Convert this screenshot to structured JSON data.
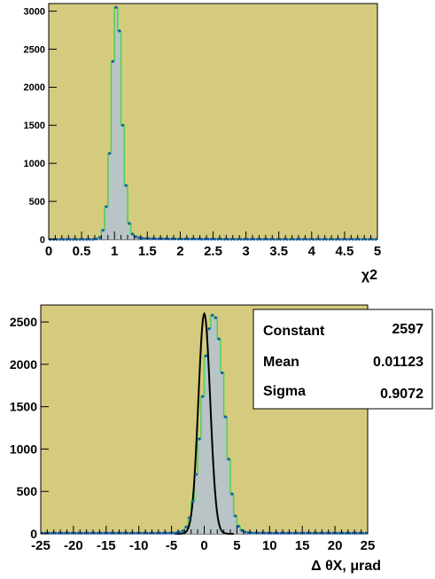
{
  "colors": {
    "frame_bg": "#d5cb7e",
    "hist_fill": "#b8c4c8",
    "hist_line": "#4fd14f",
    "fit_line": "#000000",
    "marker": "#1a5aa8",
    "stats_bg": "#ffffff"
  },
  "chart_data": [
    {
      "type": "histogram",
      "xlabel": "χ2",
      "xlim": [
        0,
        5
      ],
      "ylim": [
        0,
        3100
      ],
      "xticks": [
        "0",
        "0.5",
        "1",
        "1.5",
        "2",
        "2.5",
        "3",
        "3.5",
        "4",
        "4.5",
        "5"
      ],
      "yticks": [
        "0",
        "500",
        "1000",
        "1500",
        "2000",
        "2500",
        "3000"
      ],
      "bin_edges_start": 0.0,
      "bin_width": 0.05,
      "values": [
        0,
        0,
        0,
        0,
        0,
        0,
        0,
        0,
        0,
        0,
        0,
        0,
        0,
        0,
        5,
        25,
        120,
        430,
        1130,
        2340,
        3050,
        2740,
        1500,
        710,
        210,
        70,
        35,
        22,
        15,
        12,
        10,
        9,
        8,
        8,
        7,
        7,
        6,
        6,
        6,
        5,
        5,
        5,
        4,
        4,
        4,
        4,
        3,
        3,
        3,
        3,
        3,
        3,
        3,
        2,
        2,
        2,
        2,
        2,
        2,
        2,
        2,
        2,
        2,
        2,
        2,
        2,
        2,
        1,
        1,
        1,
        1,
        1,
        1,
        1,
        1,
        1,
        1,
        1,
        1,
        1,
        1,
        1,
        1,
        1,
        1,
        1,
        1,
        1,
        1,
        1,
        1,
        1,
        1,
        1,
        1,
        1,
        1,
        1,
        1,
        1
      ]
    },
    {
      "type": "histogram",
      "xlabel": "Δ θX, μrad",
      "xlim": [
        -25,
        25
      ],
      "ylim": [
        0,
        2700
      ],
      "xticks": [
        "-25",
        "-20",
        "-15",
        "-10",
        "-5",
        "0",
        "5",
        "10",
        "15",
        "20",
        "25"
      ],
      "yticks": [
        "0",
        "500",
        "1000",
        "1500",
        "2000",
        "2500"
      ],
      "bin_edges_start": -25.0,
      "bin_width": 0.5,
      "values": [
        8,
        8,
        8,
        8,
        8,
        8,
        8,
        8,
        8,
        8,
        8,
        8,
        8,
        8,
        8,
        8,
        8,
        8,
        8,
        8,
        8,
        8,
        8,
        8,
        8,
        8,
        8,
        8,
        8,
        8,
        8,
        8,
        8,
        8,
        8,
        8,
        8,
        8,
        9,
        9,
        10,
        12,
        18,
        35,
        80,
        190,
        380,
        700,
        1120,
        1620,
        2100,
        2420,
        2580,
        2550,
        2300,
        1900,
        1380,
        880,
        470,
        210,
        90,
        40,
        20,
        14,
        11,
        10,
        9,
        9,
        9,
        8,
        8,
        8,
        8,
        8,
        8,
        8,
        8,
        8,
        8,
        8,
        8,
        8,
        8,
        8,
        8,
        8,
        8,
        8,
        8,
        8,
        8,
        8,
        8,
        8,
        8,
        8,
        8,
        8,
        8,
        8
      ],
      "fit": {
        "constant": 2597,
        "mean": 0.01123,
        "sigma": 0.9072
      },
      "stats": [
        {
          "label": "Constant",
          "value": "2597"
        },
        {
          "label": "Mean",
          "value": "0.01123"
        },
        {
          "label": "Sigma",
          "value": "0.9072"
        }
      ]
    }
  ]
}
